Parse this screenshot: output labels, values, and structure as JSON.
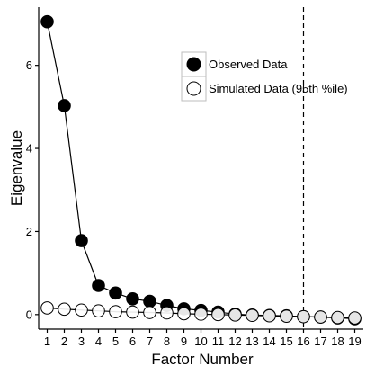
{
  "chart_data": {
    "type": "line",
    "xlabel": "Factor Number",
    "ylabel": "Eigenvalue",
    "x": [
      1,
      2,
      3,
      4,
      5,
      6,
      7,
      8,
      9,
      10,
      11,
      12,
      13,
      14,
      15,
      16,
      17,
      18,
      19
    ],
    "xlim": [
      0.5,
      19.5
    ],
    "ylim": [
      -0.35,
      7.4
    ],
    "x_ticks": [
      1,
      2,
      3,
      4,
      5,
      6,
      7,
      8,
      9,
      10,
      11,
      12,
      13,
      14,
      15,
      16,
      17,
      18,
      19
    ],
    "y_ticks": [
      0,
      2,
      4,
      6
    ],
    "grid": false,
    "legend_position": "top-right",
    "vertical_reference_line": {
      "x": 16,
      "style": "dashed"
    },
    "series": [
      {
        "name": "Observed Data",
        "marker": "filled-circle",
        "color": "#000000",
        "connected": true,
        "values": [
          7.05,
          5.03,
          1.78,
          0.7,
          0.52,
          0.38,
          0.32,
          0.22,
          0.14,
          0.1,
          0.06,
          0.01,
          -0.01,
          -0.02,
          -0.03,
          -0.05,
          -0.06,
          -0.08,
          -0.1
        ]
      },
      {
        "name": "Simulated Data (95th %ile)",
        "marker": "open-circle",
        "color": "#000000",
        "connected": true,
        "values": [
          0.16,
          0.13,
          0.11,
          0.09,
          0.07,
          0.06,
          0.05,
          0.04,
          0.02,
          0.01,
          0.0,
          -0.01,
          -0.02,
          -0.03,
          -0.04,
          -0.05,
          -0.06,
          -0.07,
          -0.08
        ]
      }
    ]
  }
}
